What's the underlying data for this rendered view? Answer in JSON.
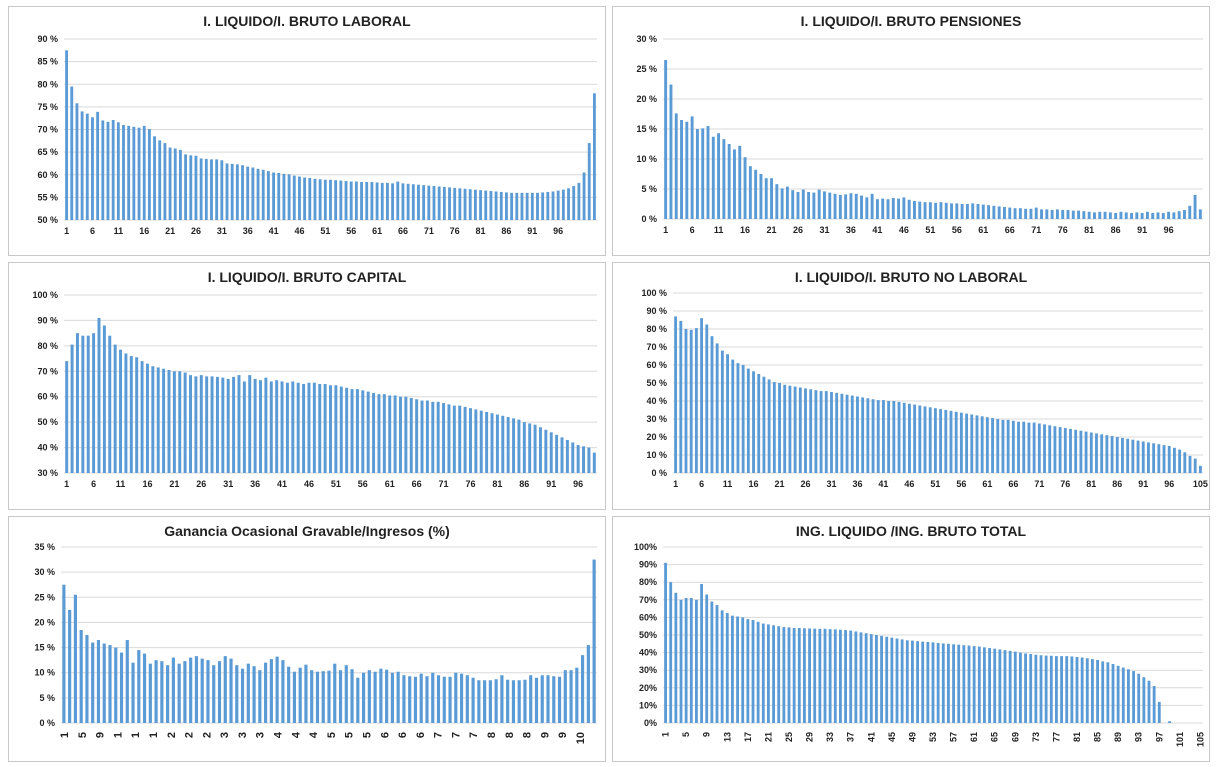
{
  "chart_data": [
    {
      "type": "bar",
      "title": "I. LIQUIDO/I. BRUTO LABORAL",
      "ylim": [
        50,
        90
      ],
      "yticks": [
        50,
        55,
        60,
        65,
        70,
        75,
        80,
        85,
        90
      ],
      "ytick_labels": [
        "50 %",
        "55 %",
        "60 %",
        "65 %",
        "70 %",
        "75 %",
        "80 %",
        "85 %",
        "90 %"
      ],
      "xtick_labels": [
        "1",
        "6",
        "11",
        "16",
        "21",
        "26",
        "31",
        "36",
        "41",
        "46",
        "51",
        "56",
        "61",
        "66",
        "71",
        "76",
        "81",
        "86",
        "91",
        "96"
      ],
      "values": [
        87.5,
        79.5,
        75.8,
        74,
        73.5,
        72.7,
        73.9,
        72,
        71.7,
        72.1,
        71.6,
        71,
        70.8,
        70.6,
        70.4,
        70.8,
        70.1,
        68.5,
        67.6,
        67,
        66,
        65.8,
        65.5,
        64.5,
        64.3,
        64.2,
        63.6,
        63.5,
        63.4,
        63.4,
        63.2,
        62.5,
        62.4,
        62.3,
        62.1,
        61.8,
        61.6,
        61.3,
        61.1,
        60.8,
        60.5,
        60.4,
        60.2,
        60.1,
        59.8,
        59.6,
        59.4,
        59.3,
        59.1,
        59,
        58.9,
        58.9,
        58.8,
        58.7,
        58.6,
        58.5,
        58.5,
        58.4,
        58.4,
        58.4,
        58.3,
        58.2,
        58.2,
        58.1,
        58.5,
        58.1,
        58,
        57.9,
        57.8,
        57.7,
        57.6,
        57.5,
        57.4,
        57.3,
        57.2,
        57.1,
        57,
        56.9,
        56.8,
        56.7,
        56.6,
        56.5,
        56.4,
        56.3,
        56.2,
        56.1,
        56,
        56,
        56,
        56,
        56,
        56,
        56.1,
        56.2,
        56.3,
        56.5,
        56.7,
        57,
        57.5,
        58.2,
        60.5,
        67,
        78
      ]
    },
    {
      "type": "bar",
      "title": "I. LIQUIDO/I. BRUTO PENSIONES",
      "ylim": [
        0,
        30
      ],
      "yticks": [
        0,
        5,
        10,
        15,
        20,
        25,
        30
      ],
      "ytick_labels": [
        "0 %",
        "5 %",
        "10 %",
        "15 %",
        "20 %",
        "25 %",
        "30 %"
      ],
      "xtick_labels": [
        "1",
        "6",
        "11",
        "16",
        "21",
        "26",
        "31",
        "36",
        "41",
        "46",
        "51",
        "56",
        "61",
        "66",
        "71",
        "76",
        "81",
        "86",
        "91",
        "96"
      ],
      "values": [
        26.5,
        22.4,
        17.6,
        16.5,
        16.2,
        17.1,
        15,
        15.1,
        15.5,
        13.7,
        14.3,
        13.3,
        12.5,
        11.6,
        12.2,
        10.3,
        8.8,
        8.2,
        7.5,
        6.8,
        6.8,
        5.8,
        5.1,
        5.4,
        4.8,
        4.5,
        4.9,
        4.5,
        4.4,
        4.9,
        4.6,
        4.4,
        4.2,
        4,
        4.1,
        4.3,
        4.2,
        3.9,
        3.6,
        4.2,
        3.3,
        3.4,
        3.3,
        3.5,
        3.4,
        3.6,
        3.2,
        3,
        2.9,
        2.8,
        2.8,
        2.7,
        2.8,
        2.7,
        2.6,
        2.6,
        2.5,
        2.5,
        2.6,
        2.5,
        2.4,
        2.3,
        2.2,
        2.1,
        2,
        1.9,
        1.8,
        1.8,
        1.7,
        1.7,
        1.9,
        1.6,
        1.6,
        1.5,
        1.6,
        1.5,
        1.5,
        1.4,
        1.4,
        1.3,
        1.2,
        1.1,
        1.2,
        1.2,
        1.1,
        1,
        1.2,
        1.1,
        1,
        1.1,
        1,
        1.2,
        1,
        1.1,
        1,
        1.2,
        1.1,
        1.3,
        1.5,
        2.2,
        4,
        1.6
      ]
    },
    {
      "type": "bar",
      "title": "I. LIQUIDO/I. BRUTO CAPITAL",
      "ylim": [
        30,
        100
      ],
      "yticks": [
        30,
        40,
        50,
        60,
        70,
        80,
        90,
        100
      ],
      "ytick_labels": [
        "30 %",
        "40 %",
        "50 %",
        "60 %",
        "70 %",
        "80 %",
        "90 %",
        "100 %"
      ],
      "xtick_labels": [
        "1",
        "6",
        "11",
        "16",
        "21",
        "26",
        "31",
        "36",
        "41",
        "46",
        "51",
        "56",
        "61",
        "66",
        "71",
        "76",
        "81",
        "86",
        "91",
        "96"
      ],
      "values": [
        74,
        80.5,
        85,
        84,
        84,
        85,
        91,
        88,
        84,
        80.5,
        78.5,
        77,
        76,
        75.5,
        74,
        73,
        72,
        71.5,
        71,
        70.5,
        70,
        70,
        69.5,
        68.5,
        68,
        68.5,
        68,
        68,
        67.8,
        67.5,
        67,
        67.8,
        68.5,
        66,
        68.5,
        67,
        66.5,
        67.5,
        66,
        66.5,
        66,
        65.5,
        66,
        65.5,
        65,
        65.5,
        65.5,
        65,
        65,
        64.5,
        64.5,
        64,
        63.5,
        63,
        63,
        62.5,
        62,
        61.5,
        61,
        61,
        60.5,
        60.5,
        60,
        60,
        59.5,
        59,
        58.5,
        58.5,
        58,
        58,
        57.5,
        57,
        56.5,
        56.5,
        56,
        55.5,
        55,
        54.5,
        54,
        53.5,
        53,
        52.5,
        52,
        51.5,
        51,
        50,
        49.5,
        49,
        48,
        47,
        46,
        45,
        44,
        43,
        42,
        41,
        40.5,
        40,
        38
      ]
    },
    {
      "type": "bar",
      "title": "I. LIQUIDO/I. BRUTO NO LABORAL",
      "ylim": [
        0,
        100
      ],
      "yticks": [
        0,
        10,
        20,
        30,
        40,
        50,
        60,
        70,
        80,
        90,
        100
      ],
      "ytick_labels": [
        "0 %",
        "10 %",
        "20 %",
        "30 %",
        "40 %",
        "50 %",
        "60 %",
        "70 %",
        "80 %",
        "90 %",
        "100 %"
      ],
      "xtick_labels": [
        "1",
        "6",
        "11",
        "16",
        "21",
        "26",
        "31",
        "36",
        "41",
        "46",
        "51",
        "56",
        "61",
        "66",
        "71",
        "76",
        "81",
        "86",
        "91",
        "96",
        "105"
      ],
      "values": [
        87,
        84.5,
        80,
        79.5,
        80.5,
        86,
        82.5,
        76,
        72,
        68,
        66,
        63,
        61,
        60,
        58,
        56.5,
        55,
        53.5,
        52,
        50.5,
        50,
        49,
        48.5,
        48,
        47.5,
        47,
        46.5,
        46,
        45.5,
        45.5,
        45,
        44.5,
        44,
        43.5,
        43,
        42.5,
        42,
        41.5,
        41,
        40.5,
        40.5,
        40,
        40,
        39.5,
        39,
        38.5,
        38,
        37.5,
        37,
        36.5,
        36,
        35.5,
        35,
        34.5,
        34,
        33.5,
        33,
        32.5,
        32,
        31.5,
        31,
        30.5,
        30,
        29.5,
        29.5,
        29,
        28.5,
        28.5,
        28,
        28,
        27.5,
        27,
        26.5,
        26,
        25.5,
        25,
        24.5,
        24,
        23.5,
        23,
        22.5,
        22,
        21.5,
        21,
        20.5,
        20,
        19.5,
        19,
        18.5,
        18,
        17.5,
        17,
        16.5,
        16,
        15.5,
        15,
        14,
        13,
        11.5,
        9.5,
        8,
        4
      ]
    },
    {
      "type": "bar",
      "title": "Ganancia Ocasional Gravable/Ingresos (%)",
      "ylim": [
        0,
        35
      ],
      "yticks": [
        0,
        5,
        10,
        15,
        20,
        25,
        30,
        35
      ],
      "ytick_labels": [
        "0 %",
        "5 %",
        "10 %",
        "15 %",
        "20 %",
        "25 %",
        "30 %",
        "35 %"
      ],
      "xtick_labels": [
        "1",
        "5",
        "9",
        "1",
        "1",
        "1",
        "2",
        "2",
        "2",
        "3",
        "3",
        "3",
        "4",
        "4",
        "4",
        "5",
        "5",
        "5",
        "6",
        "6",
        "6",
        "7",
        "7",
        "7",
        "8",
        "8",
        "8",
        "9",
        "9",
        "10"
      ],
      "values": [
        27.5,
        22.5,
        25.5,
        18.5,
        17.5,
        16,
        16.5,
        15.8,
        15.5,
        15,
        14,
        16.5,
        12,
        14.5,
        13.8,
        11.8,
        12.5,
        12.3,
        11.5,
        13,
        11.8,
        12.3,
        13,
        13.3,
        12.8,
        12.5,
        11.5,
        12.3,
        13.3,
        12.8,
        11.5,
        10.8,
        11.8,
        11.3,
        10.5,
        12,
        12.7,
        13.2,
        12.5,
        11.2,
        10.2,
        11,
        11.6,
        10.5,
        10.2,
        10.3,
        10.4,
        11.8,
        10.5,
        11.5,
        10.7,
        9,
        10,
        10.5,
        10.2,
        10.8,
        10.6,
        10,
        10.2,
        9.5,
        9.3,
        9.2,
        9.8,
        9.3,
        10,
        9.5,
        9.2,
        9.2,
        10,
        9.8,
        9.5,
        9,
        8.5,
        8.5,
        8.5,
        8.7,
        9.5,
        8.6,
        8.5,
        8.5,
        8.6,
        9.5,
        9,
        9.5,
        9.5,
        9.3,
        9.2,
        10.5,
        10.5,
        11,
        13.5,
        15.5,
        32.5
      ]
    },
    {
      "type": "bar",
      "title": "ING. LIQUIDO /ING. BRUTO TOTAL",
      "ylim": [
        0,
        100
      ],
      "yticks": [
        0,
        10,
        20,
        30,
        40,
        50,
        60,
        70,
        80,
        90,
        100
      ],
      "ytick_labels": [
        "0%",
        "10%",
        "20%",
        "30%",
        "40%",
        "50%",
        "60%",
        "70%",
        "80%",
        "90%",
        "100%"
      ],
      "xtick_labels": [
        "1",
        "5",
        "9",
        "13",
        "17",
        "21",
        "25",
        "29",
        "33",
        "37",
        "41",
        "45",
        "49",
        "53",
        "57",
        "61",
        "65",
        "69",
        "73",
        "77",
        "81",
        "85",
        "89",
        "93",
        "97",
        "101",
        "105"
      ],
      "values": [
        91,
        80,
        74,
        70,
        71,
        71,
        70,
        79,
        73,
        69,
        67,
        64,
        62.5,
        61,
        60.5,
        60,
        59,
        58.5,
        57.5,
        56.5,
        56,
        55.5,
        55,
        54.5,
        54.3,
        54,
        54,
        53.8,
        53.7,
        53.6,
        53.5,
        53.5,
        53.3,
        53.2,
        53,
        52.8,
        52.5,
        52,
        51.5,
        51,
        50.5,
        50,
        49.5,
        49,
        48.5,
        48,
        47.5,
        47,
        46.8,
        46.5,
        46.2,
        46,
        45.8,
        45.5,
        45.2,
        45,
        44.7,
        44.5,
        44.2,
        44,
        43.7,
        43.4,
        43,
        42.6,
        42.2,
        41.8,
        41.4,
        41,
        40.5,
        40,
        39.5,
        39.2,
        38.8,
        38.5,
        38.3,
        38.2,
        38,
        38,
        38,
        37.8,
        37.5,
        37.2,
        36.8,
        36.3,
        35.8,
        35,
        34.5,
        33.5,
        32.5,
        31.5,
        30.5,
        29.5,
        28,
        26,
        24,
        21,
        12,
        0,
        1,
        0,
        0,
        0,
        0,
        0,
        0
      ]
    }
  ]
}
